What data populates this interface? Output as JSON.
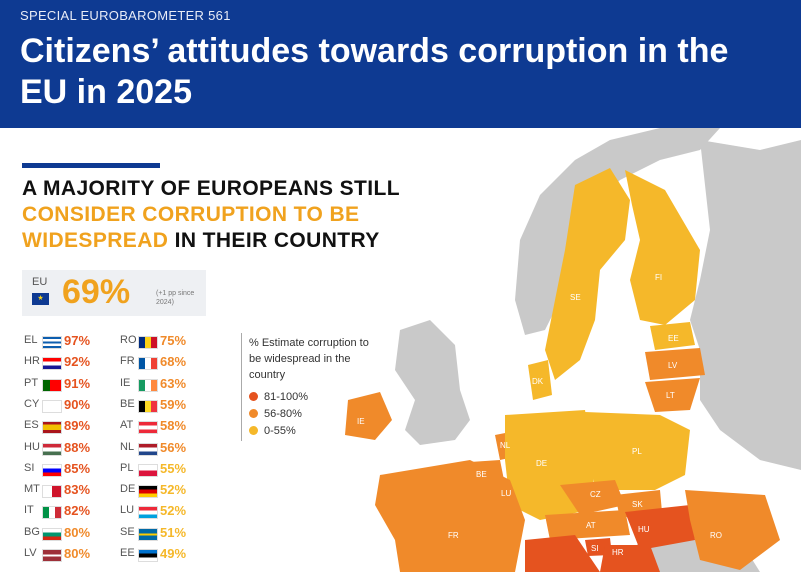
{
  "header": {
    "kicker": "SPECIAL EUROBAROMETER 561",
    "title": "Citizens’ attitudes towards corruption in the EU in 2025"
  },
  "headline": {
    "part1": "A MAJORITY OF EUROPEANS STILL",
    "part2": "CONSIDER CORRUPTION TO BE",
    "part3": "WIDESPREAD",
    "part4": " IN THEIR COUNTRY"
  },
  "eu": {
    "label": "EU",
    "value": "69%",
    "note": "(+1 pp since 2024)",
    "flag": "eu-flag"
  },
  "countries_left": [
    {
      "code": "EL",
      "value": "97%"
    },
    {
      "code": "HR",
      "value": "92%"
    },
    {
      "code": "PT",
      "value": "91%"
    },
    {
      "code": "CY",
      "value": "90%"
    },
    {
      "code": "ES",
      "value": "89%"
    },
    {
      "code": "HU",
      "value": "88%"
    },
    {
      "code": "SI",
      "value": "85%"
    },
    {
      "code": "MT",
      "value": "83%"
    },
    {
      "code": "IT",
      "value": "82%"
    },
    {
      "code": "BG",
      "value": "80%"
    },
    {
      "code": "LV",
      "value": "80%"
    }
  ],
  "countries_right": [
    {
      "code": "RO",
      "value": "75%"
    },
    {
      "code": "FR",
      "value": "68%"
    },
    {
      "code": "IE",
      "value": "63%"
    },
    {
      "code": "BE",
      "value": "59%"
    },
    {
      "code": "AT",
      "value": "58%"
    },
    {
      "code": "NL",
      "value": "56%"
    },
    {
      "code": "PL",
      "value": "55%"
    },
    {
      "code": "DE",
      "value": "52%"
    },
    {
      "code": "LU",
      "value": "52%"
    },
    {
      "code": "SE",
      "value": "51%"
    },
    {
      "code": "EE",
      "value": "49%"
    }
  ],
  "legend": {
    "title": "% Estimate corruption to be widespread in the country",
    "items": [
      {
        "label": "81-100%",
        "color": "#e5531f"
      },
      {
        "label": "56-80%",
        "color": "#f08a2a"
      },
      {
        "label": "0-55%",
        "color": "#f5b82a"
      }
    ]
  },
  "map_labels": {
    "FI": "FI",
    "SE": "SE",
    "EE": "EE",
    "LV": "LV",
    "LT": "LT",
    "DK": "DK",
    "IE": "IE",
    "NL": "NL",
    "BE": "BE",
    "LU": "LU",
    "DE": "DE",
    "PL": "PL",
    "CZ": "CZ",
    "SK": "SK",
    "AT": "AT",
    "HU": "HU",
    "RO": "RO",
    "FR": "FR",
    "SI": "SI",
    "HR": "HR"
  },
  "colors": {
    "header_bg": "#0e3a92",
    "accent": "#f0a21e",
    "high": "#e5531f",
    "mid": "#f08a2a",
    "low": "#f5b82a",
    "nonmember": "#c9c9c9"
  }
}
